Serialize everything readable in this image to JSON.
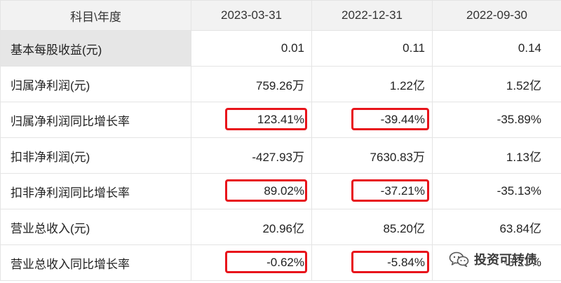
{
  "table": {
    "headers": [
      "科目\\年度",
      "2023-03-31",
      "2022-12-31",
      "2022-09-30"
    ],
    "rows": [
      {
        "label": "基本每股收益(元)",
        "values": [
          "0.01",
          "0.11",
          "0.14"
        ],
        "highlighted": [
          false,
          false,
          false
        ]
      },
      {
        "label": "归属净利润(元)",
        "values": [
          "759.26万",
          "1.22亿",
          "1.52亿"
        ],
        "highlighted": [
          false,
          false,
          false
        ]
      },
      {
        "label": "归属净利润同比增长率",
        "values": [
          "123.41%",
          "-39.44%",
          "-35.89%"
        ],
        "highlighted": [
          true,
          true,
          false
        ]
      },
      {
        "label": "扣非净利润(元)",
        "values": [
          "-427.93万",
          "7630.83万",
          "1.13亿"
        ],
        "highlighted": [
          false,
          false,
          false
        ]
      },
      {
        "label": "扣非净利润同比增长率",
        "values": [
          "89.02%",
          "-37.21%",
          "-35.13%"
        ],
        "highlighted": [
          true,
          true,
          false
        ]
      },
      {
        "label": "营业总收入(元)",
        "values": [
          "20.96亿",
          "85.20亿",
          "63.84亿"
        ],
        "highlighted": [
          false,
          false,
          false
        ]
      },
      {
        "label": "营业总收入同比增长率",
        "values": [
          "-0.62%",
          "-5.84%",
          "-3.23%"
        ],
        "highlighted": [
          true,
          true,
          false
        ]
      }
    ]
  },
  "watermark": {
    "text": "投资可转债",
    "icon": "wechat-icon"
  },
  "colors": {
    "highlight": "#e8141b",
    "header_bg": "#f2f2f2",
    "first_label_bg": "#e6e6e6",
    "grid": "#e4e4e4"
  }
}
